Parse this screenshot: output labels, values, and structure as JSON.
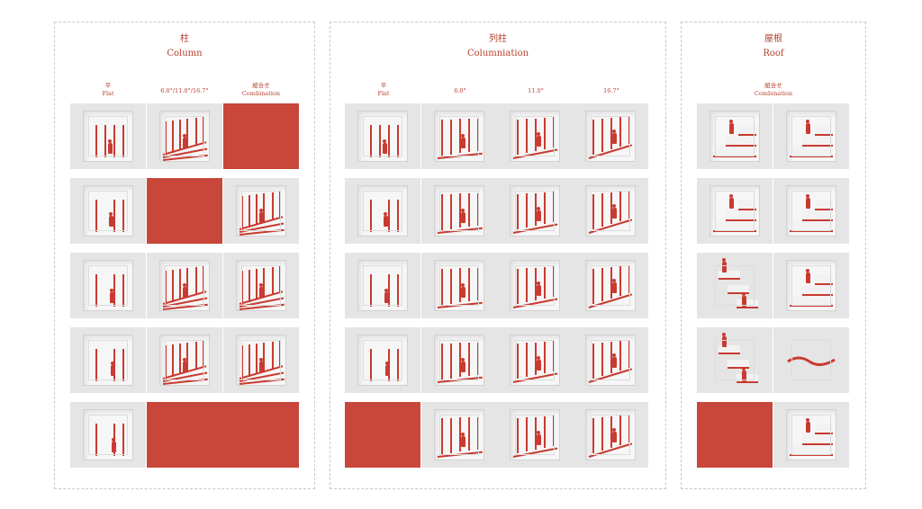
{
  "panels": [
    {
      "title_jp": "柱",
      "title_en": "Column",
      "columns": [
        {
          "jp": "平",
          "en": "Flat"
        },
        {
          "jp": "",
          "en": "6.0°/11.0°/16.7°"
        },
        {
          "jp": "組合せ",
          "en": "Combination"
        }
      ]
    },
    {
      "title_jp": "列柱",
      "title_en": "Columniation",
      "columns": [
        {
          "jp": "平",
          "en": "Flat"
        },
        {
          "jp": "",
          "en": "6.0°"
        },
        {
          "jp": "",
          "en": "11.0°"
        },
        {
          "jp": "",
          "en": "16.7°"
        }
      ]
    },
    {
      "title_jp": "屋根",
      "title_en": "Roof",
      "columns": [
        {
          "jp": "組合せ",
          "en": "Combination"
        }
      ]
    }
  ],
  "colors": {
    "accent": "#c8473a",
    "cell_bg": "#e5e5e5",
    "border": "#c9c9c9"
  }
}
